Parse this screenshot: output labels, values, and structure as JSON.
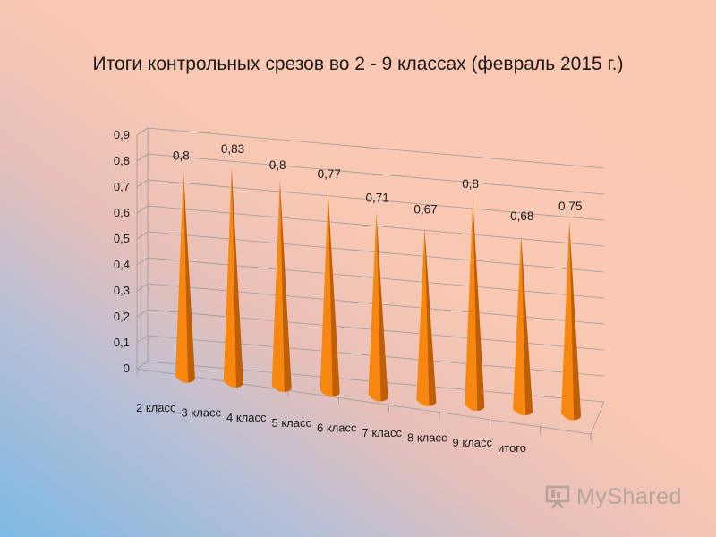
{
  "title": "Итоги контрольных срезов во 2 - 9 классах (февраль 2015 г.)",
  "colors": {
    "cone_front": "#f7870f",
    "cone_side": "#c05e06",
    "grid": "#9a9a9a"
  },
  "chart_data": {
    "type": "bar",
    "bar_shape": "cone-3d",
    "title": "Итоги контрольных срезов во 2 - 9 классах (февраль 2015 г.)",
    "categories": [
      "2 класс",
      "3 класс",
      "4 класс",
      "5 класс",
      "6 класс",
      "7 класс",
      "8 класс",
      "9 класс",
      "итого"
    ],
    "values": [
      0.8,
      0.83,
      0.8,
      0.77,
      0.71,
      0.67,
      0.8,
      0.68,
      0.75
    ],
    "value_labels": [
      "0,8",
      "0,83",
      "0,8",
      "0,77",
      "0,71",
      "0,67",
      "0,8",
      "0,68",
      "0,75"
    ],
    "y_ticks": [
      "0",
      "0,1",
      "0,2",
      "0,3",
      "0,4",
      "0,5",
      "0,6",
      "0,7",
      "0,8",
      "0,9"
    ],
    "ylim": [
      0,
      0.9
    ],
    "xlabel": "",
    "ylabel": "",
    "legend": "none",
    "grid": true
  },
  "watermark": {
    "text": "MyShared",
    "icon": "presentation-board-icon"
  }
}
